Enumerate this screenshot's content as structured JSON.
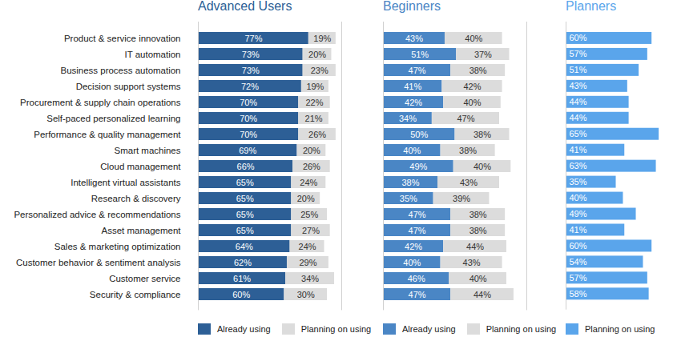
{
  "chart_data": [
    {
      "type": "bar",
      "title": "Advanced Users",
      "orientation": "horizontal",
      "stacked": true,
      "data_labels": true,
      "tick_labels": "y",
      "legend": "bottom",
      "categories": [
        "Product & service innovation",
        "IT automation",
        "Business process automation",
        "Decision support systems",
        "Procurement & supply chain operations",
        "Self-paced personalized learning",
        "Performance & quality management",
        "Smart machines",
        "Cloud management",
        "Intelligent virtual assistants",
        "Research & discovery",
        "Personalized advice & recommendations",
        "Asset management",
        "Sales & marketing optimization",
        "Customer behavior & sentiment analysis",
        "Customer service",
        "Security & compliance"
      ],
      "xlim": [
        0,
        100
      ],
      "series": [
        {
          "name": "Already using",
          "color": "#2d5f96",
          "values": [
            77,
            73,
            73,
            72,
            70,
            70,
            70,
            69,
            66,
            65,
            65,
            65,
            65,
            64,
            62,
            61,
            60
          ],
          "value_labels": [
            "77%",
            "73%",
            "73%",
            "72%",
            "70%",
            "70%",
            "70%",
            "69%",
            "66%",
            "65%",
            "65%",
            "65%",
            "65%",
            "64%",
            "62%",
            "61%",
            "60%"
          ]
        },
        {
          "name": "Planning on using",
          "color": "#dcdcdc",
          "values": [
            19,
            20,
            23,
            19,
            22,
            21,
            26,
            20,
            26,
            24,
            20,
            25,
            27,
            24,
            29,
            34,
            30
          ],
          "value_labels": [
            "19%",
            "20%",
            "23%",
            "19%",
            "22%",
            "21%",
            "26%",
            "20%",
            "26%",
            "24%",
            "20%",
            "25%",
            "27%",
            "24%",
            "29%",
            "34%",
            "30%"
          ]
        }
      ]
    },
    {
      "type": "bar",
      "title": "Beginners",
      "orientation": "horizontal",
      "stacked": true,
      "data_labels": true,
      "tick_labels": false,
      "legend": "bottom",
      "categories": [
        "Product & service innovation",
        "IT automation",
        "Business process automation",
        "Decision support systems",
        "Procurement & supply chain operations",
        "Self-paced personalized learning",
        "Performance & quality management",
        "Smart machines",
        "Cloud management",
        "Intelligent virtual assistants",
        "Research & discovery",
        "Personalized advice & recommendations",
        "Asset management",
        "Sales & marketing optimization",
        "Customer behavior & sentiment analysis",
        "Customer service",
        "Security & compliance"
      ],
      "xlim": [
        0,
        100
      ],
      "series": [
        {
          "name": "Already using",
          "color": "#4a86c5",
          "values": [
            43,
            51,
            47,
            41,
            42,
            34,
            50,
            40,
            49,
            38,
            35,
            47,
            47,
            42,
            40,
            46,
            47
          ],
          "value_labels": [
            "43%",
            "51%",
            "47%",
            "41%",
            "42%",
            "34%",
            "50%",
            "40%",
            "49%",
            "38%",
            "35%",
            "47%",
            "47%",
            "42%",
            "40%",
            "46%",
            "47%"
          ]
        },
        {
          "name": "Planning on using",
          "color": "#dcdcdc",
          "values": [
            40,
            37,
            38,
            42,
            40,
            47,
            38,
            38,
            40,
            43,
            39,
            38,
            38,
            44,
            43,
            40,
            44
          ],
          "value_labels": [
            "40%",
            "37%",
            "38%",
            "42%",
            "40%",
            "47%",
            "38%",
            "38%",
            "40%",
            "43%",
            "39%",
            "38%",
            "38%",
            "44%",
            "43%",
            "40%",
            "44%"
          ]
        }
      ]
    },
    {
      "type": "bar",
      "title": "Planners",
      "orientation": "horizontal",
      "stacked": false,
      "data_labels": true,
      "tick_labels": false,
      "legend": "bottom",
      "categories": [
        "Product & service innovation",
        "IT automation",
        "Business process automation",
        "Decision support systems",
        "Procurement & supply chain operations",
        "Self-paced personalized learning",
        "Performance & quality management",
        "Smart machines",
        "Cloud management",
        "Intelligent virtual assistants",
        "Research & discovery",
        "Personalized advice & recommendations",
        "Asset management",
        "Sales & marketing optimization",
        "Customer behavior & sentiment analysis",
        "Customer service",
        "Security & compliance"
      ],
      "xlim": [
        0,
        75
      ],
      "series": [
        {
          "name": "Planning on using",
          "color": "#5aa5eb",
          "values": [
            60,
            57,
            51,
            43,
            44,
            44,
            65,
            41,
            63,
            35,
            40,
            49,
            41,
            60,
            54,
            57,
            58
          ],
          "value_labels": [
            "60%",
            "57%",
            "51%",
            "43%",
            "44%",
            "44%",
            "65%",
            "41%",
            "63%",
            "35%",
            "40%",
            "49%",
            "41%",
            "60%",
            "54%",
            "57%",
            "58%"
          ]
        }
      ]
    }
  ]
}
